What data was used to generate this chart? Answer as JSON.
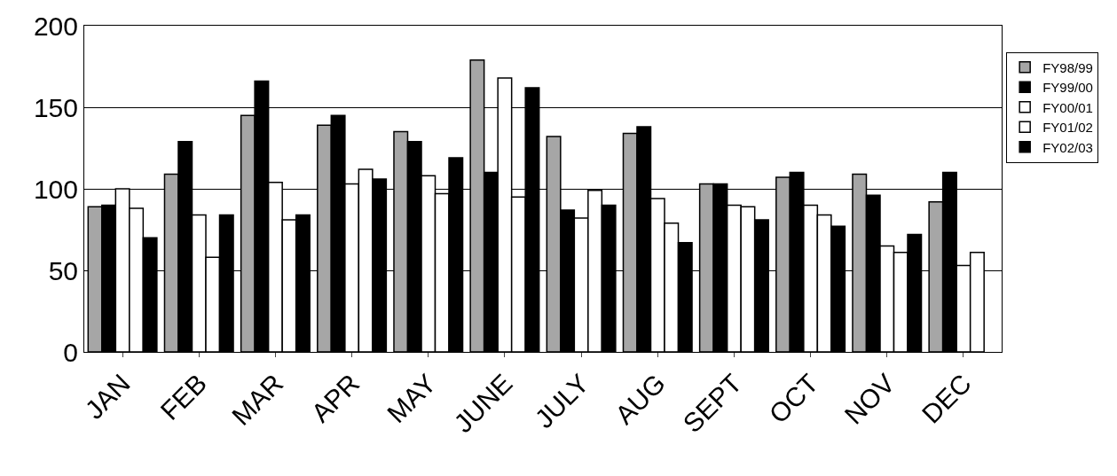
{
  "chart_data": {
    "type": "bar",
    "categories": [
      "JAN",
      "FEB",
      "MAR",
      "APR",
      "MAY",
      "JUNE",
      "JULY",
      "AUG",
      "SEPT",
      "OCT",
      "NOV",
      "DEC"
    ],
    "series": [
      {
        "name": "FY98/99",
        "color": "#a6a6a6",
        "values": [
          89,
          109,
          145,
          139,
          135,
          179,
          132,
          134,
          103,
          107,
          109,
          92
        ]
      },
      {
        "name": "FY99/00",
        "color": "#000000",
        "values": [
          90,
          129,
          166,
          145,
          129,
          110,
          87,
          138,
          103,
          110,
          96,
          110
        ]
      },
      {
        "name": "FY00/01",
        "color": "#ffffff",
        "values": [
          100,
          84,
          104,
          103,
          108,
          168,
          82,
          94,
          90,
          90,
          65,
          53
        ]
      },
      {
        "name": "FY01/02",
        "color": "#ffffff",
        "values": [
          88,
          58,
          81,
          112,
          97,
          95,
          99,
          79,
          89,
          84,
          61,
          61
        ]
      },
      {
        "name": "FY02/03",
        "color": "#000000",
        "values": [
          70,
          84,
          84,
          106,
          119,
          162,
          90,
          67,
          81,
          77,
          72,
          null
        ]
      }
    ],
    "ylim": [
      0,
      200
    ],
    "yticks": [
      0,
      50,
      100,
      150,
      200
    ],
    "grid": "y",
    "legend": "right"
  }
}
